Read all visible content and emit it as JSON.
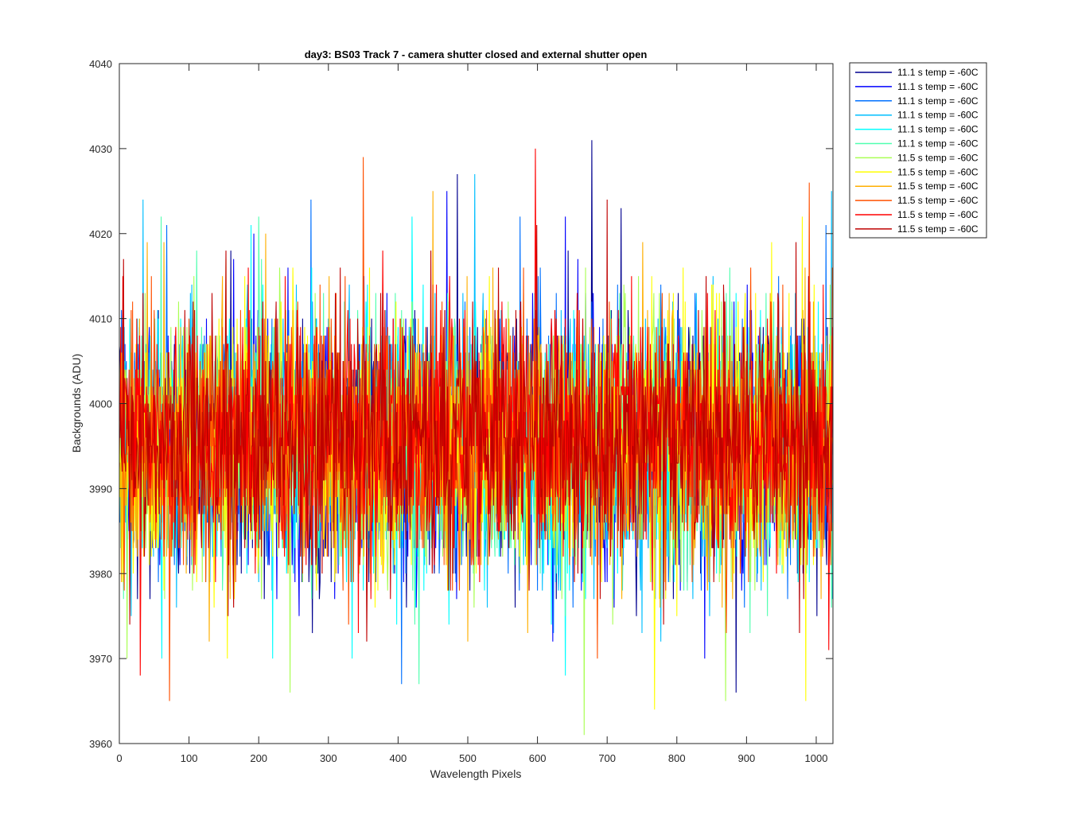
{
  "chart_data": {
    "type": "line",
    "title": "day3: BS03  Track 7 - camera shutter closed and external shutter open",
    "xlabel": "Wavelength Pixels",
    "ylabel": "Backgrounds (ADU)",
    "xlim": [
      0,
      1024
    ],
    "ylim": [
      3960,
      4040
    ],
    "xticks": [
      "0",
      "100",
      "200",
      "300",
      "400",
      "500",
      "600",
      "700",
      "800",
      "900",
      "1000"
    ],
    "yticks": [
      "3960",
      "3970",
      "3980",
      "3990",
      "4000",
      "4010",
      "4020",
      "4030",
      "4040"
    ],
    "grid": false,
    "legend_position": "outside-top-right",
    "x_points": 1024,
    "series": [
      {
        "name": "11.1 s temp = -60C",
        "color": "#00008f",
        "mean": 3995,
        "peaks": [
          [
            485,
            4027
          ],
          [
            678,
            4031
          ],
          [
            885,
            3966
          ],
          [
            720,
            4023
          ]
        ]
      },
      {
        "name": "11.1 s temp = -60C",
        "color": "#0000ff",
        "mean": 3995,
        "peaks": [
          [
            470,
            4025
          ],
          [
            840,
            3970
          ],
          [
            640,
            4022
          ]
        ]
      },
      {
        "name": "11.1 s temp = -60C",
        "color": "#0070ff",
        "mean": 3995,
        "peaks": [
          [
            275,
            4024
          ],
          [
            405,
            3967
          ],
          [
            575,
            4022
          ]
        ]
      },
      {
        "name": "11.1 s temp = -60C",
        "color": "#00bfff",
        "mean": 3995,
        "peaks": [
          [
            34,
            4024
          ],
          [
            510,
            4027
          ],
          [
            1022,
            4025
          ]
        ]
      },
      {
        "name": "11.1 s temp = -60C",
        "color": "#00ffff",
        "mean": 3995,
        "peaks": [
          [
            640,
            3968
          ],
          [
            420,
            4022
          ],
          [
            220,
            3970
          ]
        ]
      },
      {
        "name": "11.1 s temp = -60C",
        "color": "#50ffaf",
        "mean": 3995,
        "peaks": [
          [
            430,
            3967
          ],
          [
            60,
            4022
          ],
          [
            200,
            4022
          ]
        ]
      },
      {
        "name": "11.5 s temp = -60C",
        "color": "#aaff55",
        "mean": 3995,
        "peaks": [
          [
            667,
            3961
          ],
          [
            245,
            3966
          ],
          [
            870,
            3965
          ]
        ]
      },
      {
        "name": "11.5 s temp = -60C",
        "color": "#ffff00",
        "mean": 3995,
        "peaks": [
          [
            768,
            3964
          ],
          [
            985,
            3965
          ],
          [
            980,
            4022
          ]
        ]
      },
      {
        "name": "11.5 s temp = -60C",
        "color": "#ffaf00",
        "mean": 3995,
        "peaks": [
          [
            450,
            4025
          ],
          [
            210,
            4020
          ],
          [
            40,
            4019
          ]
        ]
      },
      {
        "name": "11.5 s temp = -60C",
        "color": "#ff5000",
        "mean": 3995,
        "peaks": [
          [
            350,
            4029
          ],
          [
            72,
            3965
          ],
          [
            990,
            4026
          ]
        ]
      },
      {
        "name": "11.5 s temp = -60C",
        "color": "#ff0000",
        "mean": 3996,
        "peaks": [
          [
            597,
            4030
          ],
          [
            1018,
            3971
          ],
          [
            30,
            3968
          ]
        ]
      },
      {
        "name": "11.5 s temp = -60C",
        "color": "#bf0000",
        "mean": 3996,
        "peaks": [
          [
            700,
            4024
          ],
          [
            355,
            3972
          ],
          [
            15,
            3974
          ]
        ]
      }
    ]
  }
}
